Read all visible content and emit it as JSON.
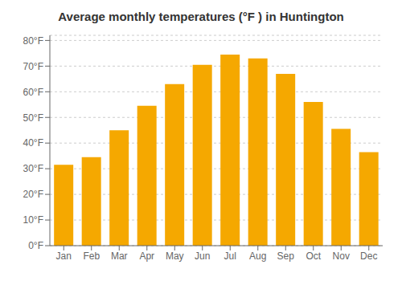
{
  "chart_data": {
    "type": "bar",
    "title": "Average monthly temperatures (°F ) in Huntington",
    "categories": [
      "Jan",
      "Feb",
      "Mar",
      "Apr",
      "May",
      "Jun",
      "Jul",
      "Aug",
      "Sep",
      "Oct",
      "Nov",
      "Dec"
    ],
    "values": [
      31.5,
      34.5,
      45.0,
      54.5,
      63.0,
      70.5,
      74.5,
      73.0,
      67.0,
      56.0,
      45.5,
      36.5
    ],
    "color": "#F5A800",
    "ylim": [
      0,
      82
    ],
    "yticks": [
      {
        "value": 0,
        "label": "0°F"
      },
      {
        "value": 10,
        "label": "10°F"
      },
      {
        "value": 20,
        "label": "20°F"
      },
      {
        "value": 30,
        "label": "30°F"
      },
      {
        "value": 40,
        "label": "40°F"
      },
      {
        "value": 50,
        "label": "50°F"
      },
      {
        "value": 60,
        "label": "60°F"
      },
      {
        "value": 70,
        "label": "70°F"
      },
      {
        "value": 80,
        "label": "80°F"
      }
    ],
    "grid": true
  }
}
